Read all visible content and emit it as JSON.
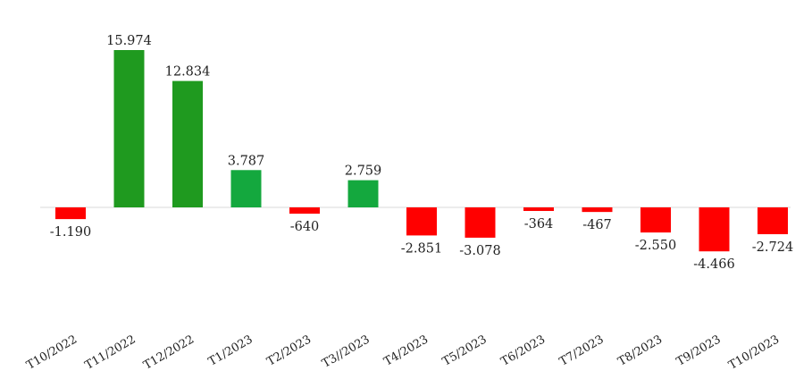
{
  "chart_data": {
    "type": "bar",
    "categories": [
      "T10/2022",
      "T11/2022",
      "T12/2022",
      "T1/2023",
      "T2/2023",
      "T3//2023",
      "T4/2023",
      "T5/2023",
      "T6/2023",
      "T7/2023",
      "T8/2023",
      "T9/2023",
      "T10/2023"
    ],
    "values": [
      -1190,
      15974,
      12834,
      3787,
      -640,
      2759,
      -2851,
      -3078,
      -364,
      -467,
      -2550,
      -4466,
      -2724
    ],
    "value_labels": [
      "-1.190",
      "15.974",
      "12.834",
      "3.787",
      "-640",
      "2.759",
      "-2.851",
      "-3.078",
      "-364",
      "-467",
      "-2.550",
      "-4.466",
      "-2.724"
    ],
    "title": "",
    "xlabel": "",
    "ylabel": "",
    "ylim": [
      -6500,
      17500
    ],
    "grid": false,
    "legend": "none",
    "colors": {
      "positive_dark": "#1f9a1f",
      "positive_light": "#14a83e",
      "negative": "#ff0000",
      "zero_line": "#d9d9d9"
    }
  }
}
